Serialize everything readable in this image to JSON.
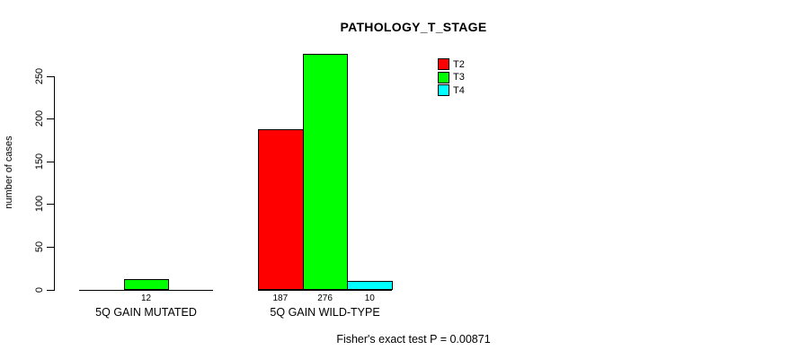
{
  "title": "PATHOLOGY_T_STAGE",
  "chart_data": {
    "type": "bar",
    "title": "PATHOLOGY_T_STAGE",
    "xlabel": "",
    "ylabel": "number of cases",
    "categories": [
      "5Q GAIN MUTATED",
      "5Q GAIN WILD-TYPE"
    ],
    "series": [
      {
        "name": "T2",
        "color": "#ff0000",
        "values": [
          0,
          187
        ]
      },
      {
        "name": "T3",
        "color": "#00ff00",
        "values": [
          12,
          276
        ]
      },
      {
        "name": "T4",
        "color": "#00ffff",
        "values": [
          0,
          10
        ]
      }
    ],
    "bar_value_labels": [
      [
        "",
        "12",
        ""
      ],
      [
        "187",
        "276",
        "10"
      ]
    ],
    "ylim": [
      0,
      250
    ],
    "yticks": [
      0,
      50,
      100,
      150,
      200,
      250
    ],
    "grid": false,
    "legend": {
      "position": "top-right",
      "entries": [
        {
          "label": "T2",
          "color": "#ff0000"
        },
        {
          "label": "T3",
          "color": "#00ff00"
        },
        {
          "label": "T4",
          "color": "#00ffff"
        }
      ]
    },
    "annotation": "Fisher's exact test P = 0.00871"
  },
  "colors": {
    "background": "#ffffff",
    "axis": "#000000",
    "text": "#000000"
  }
}
